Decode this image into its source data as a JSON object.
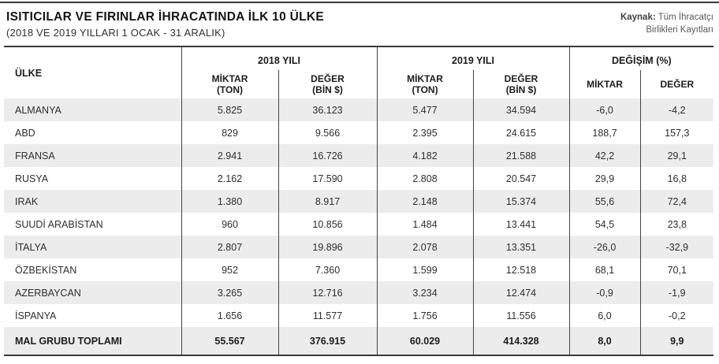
{
  "header": {
    "title": "ISITICILAR VE FIRINLAR İHRACATINDA İLK 10 ÜLKE",
    "subtitle": "(2018 VE 2019 YILLARI 1 OCAK - 31 ARALIK)",
    "source_label": "Kaynak:",
    "source_line1": "Tüm İhracatçı",
    "source_line2": "Birlikleri Kayıtları"
  },
  "table": {
    "columns": {
      "ulke": "ÜLKE",
      "group_2018": "2018 YILI",
      "group_2019": "2019 YILI",
      "group_degisim": "DEĞİŞİM (%)",
      "miktar_line1": "MİKTAR",
      "miktar_line2": "(TON)",
      "deger_line1": "DEĞER",
      "deger_line2": "(BİN $)",
      "degisim_miktar": "MİKTAR",
      "degisim_deger": "DEĞER"
    },
    "rows": [
      {
        "country": "ALMANYA",
        "miktar_2018": "5.825",
        "deger_2018": "36.123",
        "miktar_2019": "5.477",
        "deger_2019": "34.594",
        "degisim_miktar": "-6,0",
        "degisim_deger": "-4,2"
      },
      {
        "country": "ABD",
        "miktar_2018": "829",
        "deger_2018": "9.566",
        "miktar_2019": "2.395",
        "deger_2019": "24.615",
        "degisim_miktar": "188,7",
        "degisim_deger": "157,3"
      },
      {
        "country": "FRANSA",
        "miktar_2018": "2.941",
        "deger_2018": "16.726",
        "miktar_2019": "4.182",
        "deger_2019": "21.588",
        "degisim_miktar": "42,2",
        "degisim_deger": "29,1"
      },
      {
        "country": "RUSYA",
        "miktar_2018": "2.162",
        "deger_2018": "17.590",
        "miktar_2019": "2.808",
        "deger_2019": "20.547",
        "degisim_miktar": "29,9",
        "degisim_deger": "16,8"
      },
      {
        "country": "IRAK",
        "miktar_2018": "1.380",
        "deger_2018": "8.917",
        "miktar_2019": "2.148",
        "deger_2019": "15.374",
        "degisim_miktar": "55,6",
        "degisim_deger": "72,4"
      },
      {
        "country": "SUUDİ ARABİSTAN",
        "miktar_2018": "960",
        "deger_2018": "10.856",
        "miktar_2019": "1.484",
        "deger_2019": "13.441",
        "degisim_miktar": "54,5",
        "degisim_deger": "23,8"
      },
      {
        "country": "İTALYA",
        "miktar_2018": "2.807",
        "deger_2018": "19.896",
        "miktar_2019": "2.078",
        "deger_2019": "13.351",
        "degisim_miktar": "-26,0",
        "degisim_deger": "-32,9"
      },
      {
        "country": "ÖZBEKİSTAN",
        "miktar_2018": "952",
        "deger_2018": "7.360",
        "miktar_2019": "1.599",
        "deger_2019": "12.518",
        "degisim_miktar": "68,1",
        "degisim_deger": "70,1"
      },
      {
        "country": "AZERBAYCAN",
        "miktar_2018": "3.265",
        "deger_2018": "12.716",
        "miktar_2019": "3.234",
        "deger_2019": "12.474",
        "degisim_miktar": "-0,9",
        "degisim_deger": "-1,9"
      },
      {
        "country": "İSPANYA",
        "miktar_2018": "1.656",
        "deger_2018": "11.577",
        "miktar_2019": "1.756",
        "deger_2019": "11.556",
        "degisim_miktar": "6,0",
        "degisim_deger": "-0,2"
      }
    ],
    "total_row": {
      "country": "MAL GRUBU TOPLAMI",
      "miktar_2018": "55.567",
      "deger_2018": "376.915",
      "miktar_2019": "60.029",
      "deger_2019": "414.328",
      "degisim_miktar": "8,0",
      "degisim_deger": "9,9"
    }
  },
  "colors": {
    "stripe": "#ececec",
    "rule": "#3a3a3a",
    "text": "#2e2e2e",
    "source_text": "#58595b"
  }
}
